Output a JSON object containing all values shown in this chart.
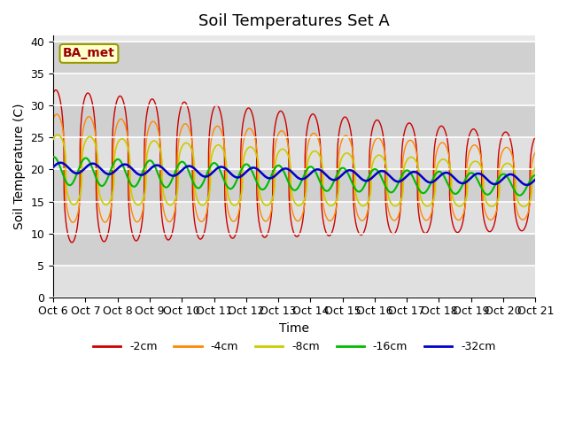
{
  "title": "Soil Temperatures Set A",
  "xlabel": "Time",
  "ylabel": "Soil Temperature (C)",
  "ylim": [
    0,
    41
  ],
  "yticks": [
    0,
    5,
    10,
    15,
    20,
    25,
    30,
    35,
    40
  ],
  "x_labels": [
    "Oct 6",
    "Oct 7",
    "Oct 8",
    "Oct 9",
    "Oct 10",
    "Oct 11",
    "Oct 12",
    "Oct 13",
    "Oct 14",
    "Oct 15",
    "Oct 16",
    "Oct 17",
    "Oct 18",
    "Oct 19",
    "Oct 20",
    "Oct 21"
  ],
  "legend_labels": [
    "-2cm",
    "-4cm",
    "-8cm",
    "-16cm",
    "-32cm"
  ],
  "line_colors": [
    "#cc0000",
    "#ff8800",
    "#cccc00",
    "#00bb00",
    "#0000cc"
  ],
  "annotation_text": "BA_met",
  "annotation_fg": "#990000",
  "annotation_bg": "#ffffcc",
  "annotation_border": "#999900",
  "background_color": "#e8e8e8",
  "plot_bg_alt": "#d8d8d8",
  "title_fontsize": 13,
  "label_fontsize": 10,
  "tick_fontsize": 9
}
